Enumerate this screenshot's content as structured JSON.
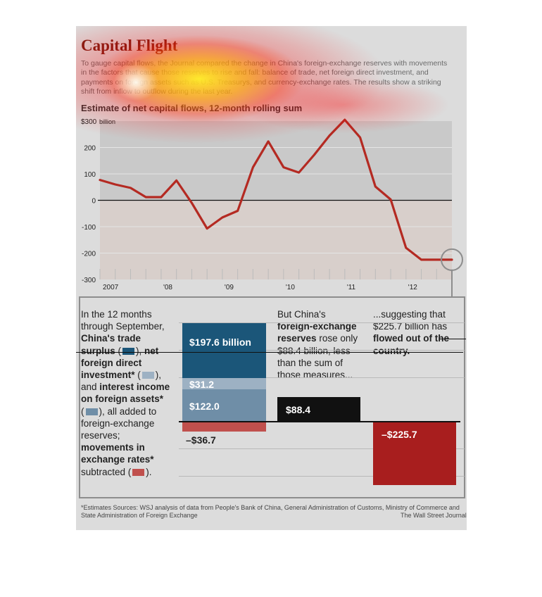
{
  "header": {
    "title": "Capital Flight",
    "intro": "To gauge capital flows, the Journal compared the change in China's foreign-exchange reserves with movements in the factors that cause those reserves to rise and fall: balance of trade, net foreign direct investment, and payments on foreign assets such as U.S. Treasurys, and currency-exchange rates. The results show a striking shift from inflow to outflow during the last year.",
    "subtitle": "Estimate of net capital flows, 12-month rolling sum"
  },
  "chart_data": [
    {
      "type": "line",
      "title": "Estimate of net capital flows, 12-month rolling sum",
      "ylabel": "$300 billion",
      "ylim": [
        -300,
        300
      ],
      "yticks": [
        "$300",
        "200",
        "100",
        "0",
        "-100",
        "-200",
        "-300"
      ],
      "xticks": [
        "2007",
        "'08",
        "'09",
        "'10",
        "'11",
        "'12"
      ],
      "series": [
        {
          "x": [
            2007.0,
            2007.25,
            2007.5,
            2007.75,
            2008.0,
            2008.25,
            2008.5,
            2008.75,
            2009.0,
            2009.25,
            2009.5,
            2009.75,
            2010.0,
            2010.25,
            2010.5,
            2010.75,
            2011.0,
            2011.25,
            2011.5,
            2011.75,
            2012.0,
            2012.25,
            2012.5,
            2012.75
          ],
          "values": [
            77,
            60,
            47,
            12,
            12,
            75,
            -10,
            -107,
            -65,
            -40,
            125,
            223,
            125,
            105,
            172,
            245,
            305,
            238,
            52,
            3,
            -180,
            -225,
            -225,
            -225
          ]
        }
      ],
      "annotation": "circle at latest value",
      "color": "#b42a22"
    },
    {
      "type": "bar",
      "title": "12 months through September (billions)",
      "stacks": [
        {
          "name": "sum",
          "segments": [
            {
              "value": 197.6,
              "label": "$197.6 billion",
              "color": "#1b5679"
            },
            {
              "value": 31.2,
              "label": "$31.2",
              "color": "#9db1c3"
            },
            {
              "value": 122.0,
              "label": "$122.0",
              "color": "#6f8ea7"
            },
            {
              "value": -36.7,
              "label": "–$36.7",
              "color": "#c0504d"
            }
          ]
        },
        {
          "name": "reserves",
          "segments": [
            {
              "value": 88.4,
              "label": "$88.4",
              "color": "#111111"
            }
          ]
        },
        {
          "name": "outflow",
          "segments": [
            {
              "value": -225.7,
              "label": "–$225.7",
              "color": "#a81e1e"
            }
          ]
        }
      ]
    }
  ],
  "panel": {
    "p1": [
      "In the 12 months",
      "through September,",
      "China's trade",
      "surplus",
      "net",
      "foreign direct",
      "investment*",
      "and",
      "interest income",
      "on foreign assets*",
      "all added to",
      "foreign-exchange",
      "reserves;",
      "movements in",
      "exchange rates*",
      "subtracted"
    ],
    "p2": [
      "But China's",
      "foreign-exchange",
      "reserves",
      "rose only",
      "$88.4 billion, less",
      "than the sum of",
      "those measures..."
    ],
    "p3": [
      "...suggesting that",
      "$225.7 billion has",
      "flowed out of the",
      "country."
    ]
  },
  "footer": {
    "note": "*Estimates    Sources: WSJ analysis of data from People's Bank of China, General Administration of Customs, Ministry of Commerce and State Administration of Foreign Exchange",
    "credit": "The Wall Street Journal"
  },
  "colors": {
    "title": "#7a1f14",
    "line": "#b42a22",
    "trade": "#1b5679",
    "fdi": "#9db1c3",
    "interest": "#6f8ea7",
    "fx": "#c0504d",
    "reserves": "#111111",
    "outflow": "#a81e1e"
  }
}
